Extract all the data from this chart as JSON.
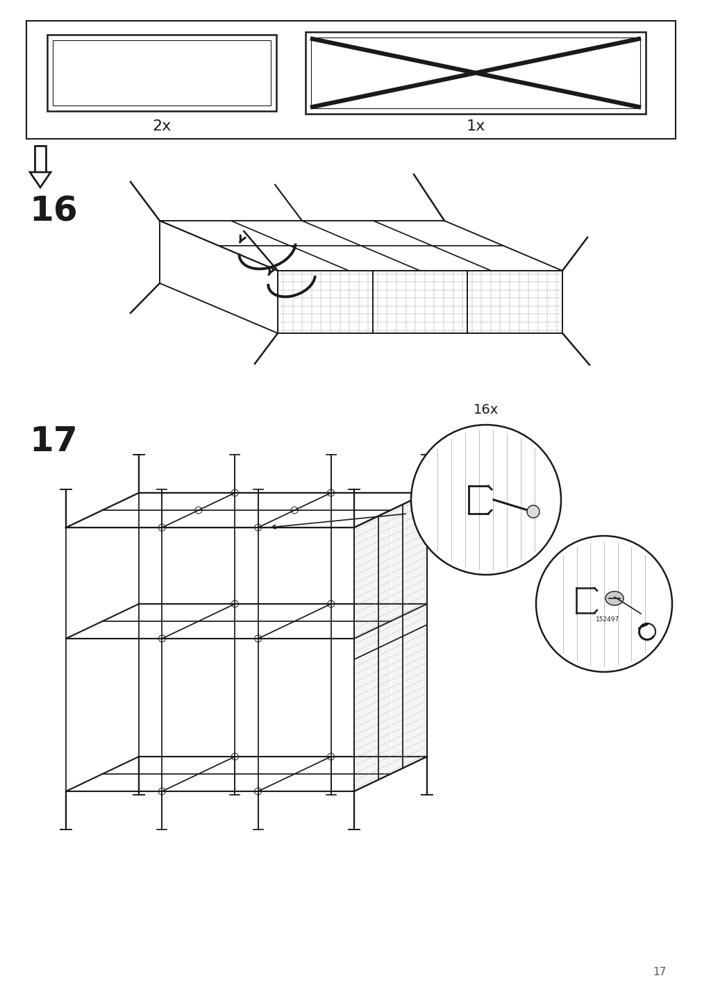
{
  "bg_color": "#ffffff",
  "line_color": "#1a1a1a",
  "page_number": "17",
  "step16_label": "16",
  "step17_label": "17",
  "font_sizes": {
    "step_label": 36,
    "count_label": 16,
    "page_num": 11
  }
}
